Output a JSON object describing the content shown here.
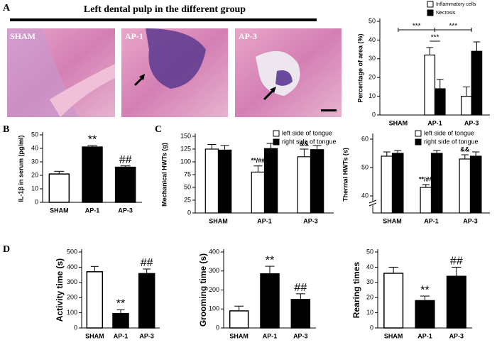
{
  "histology": {
    "panel": "A",
    "title": "Left dental pulp in the different group",
    "images": [
      "SHAM",
      "AP-1",
      "AP-3"
    ]
  },
  "chart_data": [
    {
      "type": "bar",
      "ylabel": "Percentage of area (%)",
      "categories": [
        "SHAM",
        "AP-1",
        "AP-3"
      ],
      "series": [
        {
          "name": "Inflammatory cells",
          "color": "#ffffff",
          "values": [
            0,
            32,
            10
          ],
          "errors": [
            0,
            4,
            5
          ]
        },
        {
          "name": "Necrosis",
          "color": "#000000",
          "values": [
            0,
            14,
            34
          ],
          "errors": [
            0,
            5,
            5
          ]
        }
      ],
      "comparisons": [
        {
          "from": 0,
          "to": 1,
          "label": "***"
        },
        {
          "from": 1,
          "to": 2,
          "label": "***"
        },
        {
          "from": 1,
          "to": 1,
          "label": "***"
        }
      ],
      "ylim": [
        0,
        50
      ],
      "yticks": [
        0,
        10,
        20,
        30,
        40,
        50
      ],
      "legend": "upper right"
    },
    {
      "type": "bar",
      "panel": "B",
      "ylabel": "IL-1β  in serum (pg/ml)",
      "categories": [
        "SHAM",
        "AP-1",
        "AP-3"
      ],
      "values": [
        21,
        41,
        26
      ],
      "errors": [
        2,
        1,
        1
      ],
      "colors": [
        "#ffffff",
        "#000000",
        "#000000"
      ],
      "annotations": [
        null,
        "**",
        "##"
      ],
      "ylim": [
        0,
        50
      ],
      "yticks": [
        0,
        10,
        20,
        30,
        40,
        50
      ]
    },
    {
      "type": "bar",
      "panel": "C",
      "ylabel": "Mechanical HWTs (g)",
      "categories": [
        "SHAM",
        "AP-1",
        "AP-3"
      ],
      "series": [
        {
          "name": "left side of tongue",
          "color": "#ffffff",
          "values": [
            125,
            80,
            110
          ],
          "errors": [
            9,
            12,
            15
          ],
          "annotations": [
            null,
            "**/##",
            "&&"
          ]
        },
        {
          "name": "right side of tongue",
          "color": "#000000",
          "values": [
            123,
            126,
            124
          ],
          "errors": [
            9,
            10,
            8
          ],
          "annotations": [
            null,
            null,
            null
          ]
        }
      ],
      "ylim": [
        0,
        150
      ],
      "yticks": [
        0,
        25,
        50,
        75,
        100,
        125,
        150
      ],
      "legend": "upper right"
    },
    {
      "type": "bar",
      "ylabel": "Thermal HWTs (s)",
      "categories": [
        "SHAM",
        "AP-1",
        "AP-3"
      ],
      "series": [
        {
          "name": "left side of tongue",
          "color": "#ffffff",
          "values": [
            54,
            43,
            53
          ],
          "errors": [
            1.5,
            1,
            1.5
          ],
          "annotations": [
            null,
            "**/##",
            "&&"
          ]
        },
        {
          "name": "right side of tongue",
          "color": "#000000",
          "values": [
            55,
            55,
            54
          ],
          "errors": [
            1,
            1,
            1.5
          ],
          "annotations": [
            null,
            null,
            null
          ]
        }
      ],
      "ylim": [
        34,
        61
      ],
      "yticks": [
        40,
        50,
        60
      ],
      "axis_break": true,
      "legend": "upper right"
    },
    {
      "type": "bar",
      "panel": "D",
      "ylabel": "Activity time (s)",
      "categories": [
        "SHAM",
        "AP-1",
        "AP-3"
      ],
      "values": [
        370,
        95,
        358
      ],
      "errors": [
        35,
        25,
        30
      ],
      "colors": [
        "#ffffff",
        "#000000",
        "#000000"
      ],
      "annotations": [
        null,
        "**",
        "##"
      ],
      "ylim": [
        0,
        500
      ],
      "yticks": [
        0,
        100,
        200,
        300,
        400,
        500
      ]
    },
    {
      "type": "bar",
      "ylabel": "Grooming time (s)",
      "categories": [
        "SHAM",
        "AP-1",
        "AP-3"
      ],
      "values": [
        90,
        285,
        150
      ],
      "errors": [
        25,
        40,
        30
      ],
      "colors": [
        "#ffffff",
        "#000000",
        "#000000"
      ],
      "annotations": [
        null,
        "**",
        "##"
      ],
      "ylim": [
        0,
        400
      ],
      "yticks": [
        0,
        100,
        200,
        300,
        400
      ]
    },
    {
      "type": "bar",
      "ylabel": "Rearing times",
      "categories": [
        "SHAM",
        "AP-1",
        "AP-3"
      ],
      "values": [
        36,
        18,
        34
      ],
      "errors": [
        4,
        3,
        6
      ],
      "colors": [
        "#ffffff",
        "#000000",
        "#000000"
      ],
      "annotations": [
        null,
        "**",
        "##"
      ],
      "ylim": [
        0,
        50
      ],
      "yticks": [
        0,
        10,
        20,
        30,
        40,
        50
      ]
    }
  ]
}
